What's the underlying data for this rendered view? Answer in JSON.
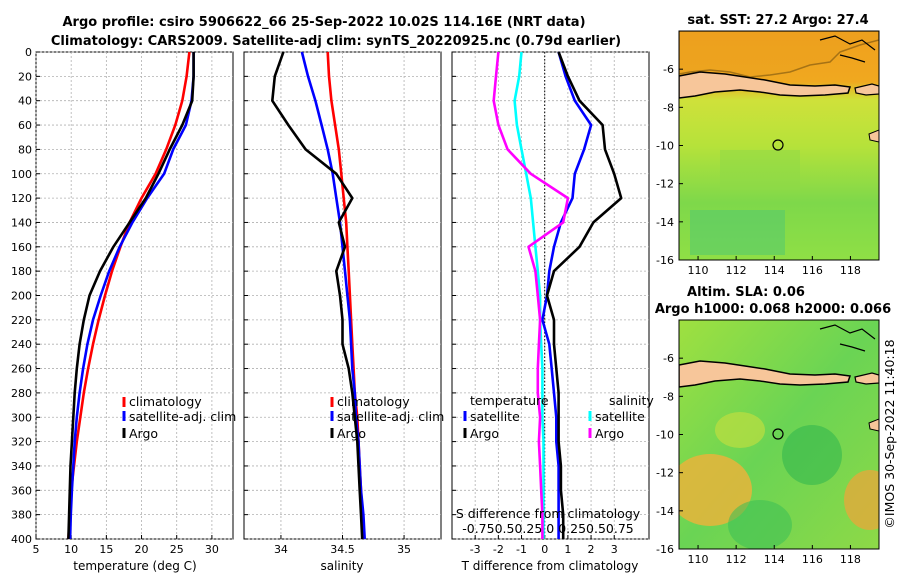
{
  "title_line1": "Argo profile: csiro 5906622_66 25-Sep-2022 10.02S 114.16E (NRT data)",
  "title_line2": "Climatology: CARS2009. Satellite-adj clim: synTS_20220925.nc (0.79d earlier)",
  "sst_title": "sat. SST: 27.2 Argo: 27.4",
  "sla_title1": "Altim. SLA: 0.06",
  "sla_title2": "Argo h1000: 0.068 h2000: 0.066",
  "watermark": "©IMOS 30-Sep-2022 11:40:18",
  "colors": {
    "climatology": "#ff0000",
    "satellite": "#0000ff",
    "argo": "#000000",
    "s_sat": "#00ffff",
    "s_diff": "#ff00ff",
    "land": "#f7c69a"
  },
  "chart_data": [
    {
      "type": "line",
      "id": "temperature",
      "xlabel": "temperature (deg C)",
      "ylabel": "",
      "xlim": [
        5,
        33
      ],
      "ylim": [
        0,
        400
      ],
      "xticks": [
        "5",
        "10",
        "15",
        "20",
        "25",
        "30"
      ],
      "yticks": [
        "0",
        "20",
        "40",
        "60",
        "80",
        "100",
        "120",
        "140",
        "160",
        "180",
        "200",
        "220",
        "240",
        "260",
        "280",
        "300",
        "320",
        "340",
        "360",
        "380",
        "400"
      ],
      "legend": [
        "climatology",
        "satellite-adj. clim",
        "Argo"
      ],
      "series": [
        {
          "name": "climatology",
          "color": "#ff0000",
          "x": [
            26.8,
            26.4,
            25.8,
            24.8,
            23.5,
            22,
            20,
            18.3,
            17,
            15.8,
            14.8,
            13.9,
            13.1,
            12.4,
            11.8,
            11.3,
            10.8,
            10.4,
            10,
            9.8,
            9.6
          ],
          "y": [
            0,
            20,
            40,
            60,
            80,
            100,
            120,
            140,
            160,
            180,
            200,
            220,
            240,
            260,
            280,
            300,
            320,
            340,
            360,
            380,
            400
          ]
        },
        {
          "name": "satellite-adj. clim",
          "color": "#0000ff",
          "x": [
            27.4,
            27.4,
            27.1,
            26.3,
            24.5,
            23.2,
            20.8,
            18.7,
            16.9,
            15.4,
            14.2,
            13.1,
            12.3,
            11.7,
            11.2,
            10.8,
            10.5,
            10.3,
            10.1,
            9.95,
            9.85
          ],
          "y": [
            0,
            20,
            40,
            60,
            80,
            100,
            120,
            140,
            160,
            180,
            200,
            220,
            240,
            260,
            280,
            300,
            320,
            340,
            360,
            380,
            400
          ]
        },
        {
          "name": "Argo",
          "color": "#000000",
          "x": [
            27.4,
            27.4,
            27.2,
            25.8,
            24,
            22.4,
            20.6,
            18.3,
            16,
            14.1,
            12.6,
            11.8,
            11.2,
            10.8,
            10.5,
            10.3,
            10.1,
            9.9,
            9.8,
            9.7,
            9.6
          ],
          "y": [
            0,
            20,
            40,
            60,
            80,
            100,
            120,
            140,
            160,
            180,
            200,
            220,
            240,
            260,
            280,
            300,
            320,
            340,
            360,
            380,
            400
          ]
        }
      ]
    },
    {
      "type": "line",
      "id": "salinity",
      "xlabel": "salinity",
      "ylabel": "",
      "xlim": [
        33.7,
        35.3
      ],
      "ylim": [
        0,
        400
      ],
      "xticks": [
        "34",
        "34.5",
        "35"
      ],
      "legend": [
        "climatology",
        "satellite-adj. clim",
        "Argo"
      ],
      "series": [
        {
          "name": "climatology",
          "color": "#ff0000",
          "x": [
            34.38,
            34.39,
            34.41,
            34.44,
            34.47,
            34.49,
            34.51,
            34.53,
            34.54,
            34.55,
            34.56,
            34.57,
            34.58,
            34.59,
            34.6,
            34.62,
            34.63,
            34.64,
            34.65,
            34.66,
            34.67
          ],
          "y": [
            0,
            20,
            40,
            60,
            80,
            100,
            120,
            140,
            160,
            180,
            200,
            220,
            240,
            260,
            280,
            300,
            320,
            340,
            360,
            380,
            400
          ]
        },
        {
          "name": "satellite-adj. clim",
          "color": "#0000ff",
          "x": [
            34.17,
            34.22,
            34.28,
            34.33,
            34.38,
            34.42,
            34.45,
            34.48,
            34.5,
            34.52,
            34.54,
            34.56,
            34.57,
            34.58,
            34.6,
            34.61,
            34.63,
            34.64,
            34.65,
            34.67,
            34.68
          ],
          "y": [
            0,
            20,
            40,
            60,
            80,
            100,
            120,
            140,
            160,
            180,
            200,
            220,
            240,
            260,
            280,
            300,
            320,
            340,
            360,
            380,
            400
          ]
        },
        {
          "name": "Argo",
          "color": "#000000",
          "x": [
            34.02,
            33.95,
            33.93,
            34.06,
            34.2,
            34.45,
            34.58,
            34.47,
            34.52,
            34.45,
            34.48,
            34.5,
            34.5,
            34.55,
            34.58,
            34.6,
            34.62,
            34.63,
            34.64,
            34.65,
            34.66
          ],
          "y": [
            0,
            20,
            40,
            60,
            80,
            100,
            120,
            140,
            160,
            180,
            200,
            220,
            240,
            260,
            280,
            300,
            320,
            340,
            360,
            380,
            400
          ]
        }
      ]
    },
    {
      "type": "line",
      "id": "difference",
      "xlabel": "T difference from climatology",
      "ylabel": "",
      "xlim": [
        -4,
        4.5
      ],
      "ylim": [
        0,
        400
      ],
      "xticks": [
        "-3",
        "-2",
        "-1",
        "0",
        "1",
        "2",
        "3"
      ],
      "top_axis_label": "S difference from climatology",
      "top_ticks": "-0.750.50.25  0  0.250.50.75",
      "legend_left_title": "temperature",
      "legend_right_title": "salinity",
      "legend": [
        "satellite",
        "Argo",
        "satellite",
        "Argo"
      ],
      "series": [
        {
          "name": "T satellite",
          "color": "#0000ff",
          "x": [
            0.6,
            0.9,
            1.3,
            2.0,
            1.7,
            1.3,
            1.2,
            0.7,
            0.4,
            0.2,
            0.1,
            -0.1,
            0.2,
            0.3,
            0.4,
            0.5,
            0.5,
            0.6,
            0.6,
            0.6,
            0.6
          ],
          "y": [
            0,
            20,
            40,
            60,
            80,
            100,
            120,
            140,
            160,
            180,
            200,
            220,
            240,
            260,
            280,
            300,
            320,
            340,
            360,
            380,
            400
          ]
        },
        {
          "name": "T Argo",
          "color": "#000000",
          "x": [
            0.6,
            1.0,
            1.5,
            2.5,
            2.6,
            3.0,
            3.3,
            2.1,
            1.5,
            0.4,
            0.1,
            0.4,
            0.4,
            0.5,
            0.6,
            0.6,
            0.6,
            0.7,
            0.7,
            0.8,
            0.8
          ],
          "y": [
            0,
            20,
            40,
            60,
            80,
            100,
            120,
            140,
            160,
            180,
            200,
            220,
            240,
            260,
            280,
            300,
            320,
            340,
            360,
            380,
            400
          ]
        },
        {
          "name": "S satellite",
          "color": "#00ffff",
          "x": [
            -1.0,
            -1.1,
            -1.3,
            -1.2,
            -1.0,
            -0.8,
            -0.6,
            -0.5,
            -0.4,
            -0.3,
            -0.2,
            -0.2,
            -0.15,
            -0.1,
            -0.1,
            -0.1,
            -0.05,
            -0.05,
            -0.05,
            -0.05,
            -0.05
          ],
          "y": [
            0,
            20,
            40,
            60,
            80,
            100,
            120,
            140,
            160,
            180,
            200,
            220,
            240,
            260,
            280,
            300,
            320,
            340,
            360,
            380,
            400
          ]
        },
        {
          "name": "S Argo",
          "color": "#ff00ff",
          "x": [
            -2.0,
            -2.1,
            -2.2,
            -2.0,
            -1.6,
            -0.6,
            1.0,
            0.8,
            -0.7,
            -0.4,
            -0.3,
            -0.2,
            -0.25,
            -0.3,
            -0.3,
            -0.2,
            -0.25,
            -0.2,
            -0.15,
            -0.1,
            -0.1
          ],
          "y": [
            0,
            20,
            40,
            60,
            80,
            100,
            120,
            140,
            160,
            180,
            200,
            220,
            240,
            260,
            280,
            300,
            320,
            340,
            360,
            380,
            400
          ]
        }
      ]
    },
    {
      "type": "heatmap",
      "id": "sst_map",
      "title": "sat. SST: 27.2 Argo: 27.4",
      "xlim": [
        109,
        119.5
      ],
      "ylim": [
        -16,
        -4
      ],
      "xticks": [
        "110",
        "112",
        "114",
        "116",
        "118"
      ],
      "yticks": [
        "-6",
        "-8",
        "-10",
        "-12",
        "-14",
        "-16"
      ],
      "marker": {
        "lon": 114.16,
        "lat": -10.02
      }
    },
    {
      "type": "heatmap",
      "id": "sla_map",
      "title": "Altim. SLA: 0.06",
      "xlim": [
        109,
        119.5
      ],
      "ylim": [
        -16,
        -4
      ],
      "xticks": [
        "110",
        "112",
        "114",
        "116",
        "118"
      ],
      "yticks": [
        "-6",
        "-8",
        "-10",
        "-12",
        "-14",
        "-16"
      ],
      "marker": {
        "lon": 114.16,
        "lat": -10.02
      }
    }
  ]
}
